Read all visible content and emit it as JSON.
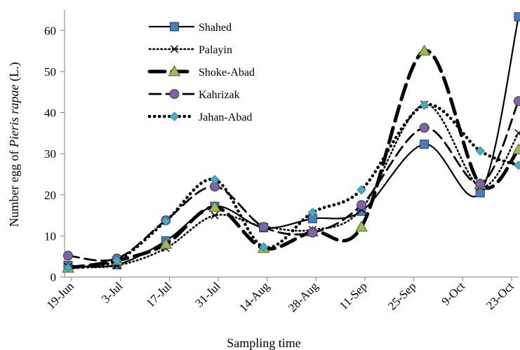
{
  "chart_data": {
    "type": "line",
    "title": "",
    "xlabel": "Sampling time",
    "ylabel_prefix": "Number egg of ",
    "ylabel_italic": "Pieris rapae",
    "ylabel_suffix": " (L.)",
    "x_tick_labels": [
      "19-Jun",
      "3-Jul",
      "17-Jul",
      "31-Jul",
      "14-Aug",
      "28-Aug",
      "11-Sep",
      "25-Sep",
      "9-Oct",
      "23-Oct"
    ],
    "y_tick_labels": [
      "0",
      "10",
      "20",
      "30",
      "40",
      "50",
      "60"
    ],
    "ylim": [
      0,
      65
    ],
    "x_tick_days": [
      0,
      14,
      28,
      42,
      56,
      70,
      84,
      98,
      112,
      126
    ],
    "x_range_days": [
      -2,
      128
    ],
    "x_sample_days": [
      -1,
      13,
      27,
      41,
      55,
      69,
      83,
      101,
      117,
      128
    ],
    "grid": false,
    "legend_position": "top-left",
    "series": [
      {
        "name": "Shahed",
        "values": [
          2.8,
          3.0,
          8.8,
          17.2,
          12.0,
          14.2,
          16.0,
          32.3,
          20.5,
          63.3
        ],
        "color": "#000000",
        "dash": "",
        "width": 2.2,
        "marker": "square",
        "marker_color": "#4a7ebb"
      },
      {
        "name": "Palayin",
        "values": [
          2.5,
          2.8,
          7.0,
          15.0,
          12.3,
          11.5,
          16.5,
          42.0,
          22.0,
          35.0
        ],
        "color": "#000000",
        "dash": "1.5,4",
        "width": 2.6,
        "marker": "x",
        "marker_color": "#000000"
      },
      {
        "name": "Shoke-Abad",
        "values": [
          2.2,
          4.0,
          8.0,
          17.0,
          7.0,
          11.0,
          12.2,
          55.0,
          22.5,
          31.0
        ],
        "color": "#000000",
        "dash": "22,10",
        "width": 5,
        "marker": "triangle",
        "marker_color": "#9bbb59"
      },
      {
        "name": "Kahrizak",
        "values": [
          5.2,
          4.5,
          13.8,
          22.0,
          12.2,
          10.8,
          17.5,
          36.3,
          22.7,
          42.8
        ],
        "color": "#000000",
        "dash": "16,8",
        "width": 2.8,
        "marker": "circle",
        "marker_color": "#8064a2"
      },
      {
        "name": "Jahan-Abad",
        "values": [
          2.2,
          4.0,
          13.6,
          23.7,
          7.3,
          15.7,
          21.2,
          41.8,
          30.7,
          27.2
        ],
        "color": "#000000",
        "dash": "0.1,7",
        "width": 4.6,
        "marker": "diamond",
        "marker_color": "#4bacc6"
      }
    ]
  }
}
